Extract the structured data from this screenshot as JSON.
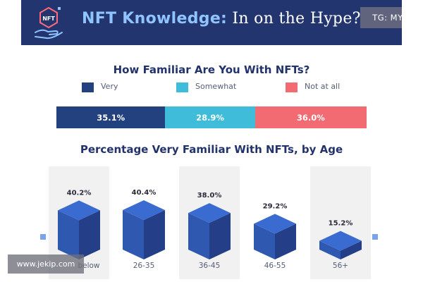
{
  "header": {
    "title_accent": "NFT Knowledge:",
    "title_rest": " In on the Hype?",
    "logo_text": "NFT",
    "background": "#23356f"
  },
  "watermarks": {
    "tg": "TG: MYYJJPP",
    "site": "www.jekip.com"
  },
  "colors": {
    "very": "#23417f",
    "somewhat": "#3fbcd9",
    "not_at_all": "#f26b73",
    "cube_front": "#2f58b0",
    "cube_top": "#3a6bd1",
    "cube_side": "#243f88"
  },
  "chart_data": [
    {
      "type": "bar",
      "title": "How Familiar Are You With NFTs?",
      "stacked": true,
      "orientation": "horizontal",
      "series": [
        {
          "name": "Very",
          "value": 35.1,
          "label": "35.1%"
        },
        {
          "name": "Somewhat",
          "value": 28.9,
          "label": "28.9%"
        },
        {
          "name": "Not at all",
          "value": 36.0,
          "label": "36.0%"
        }
      ],
      "legend": "top"
    },
    {
      "type": "bar",
      "title": "Percentage Very Familiar With NFTs, by Age",
      "categories": [
        "18-25 & below",
        "26-35",
        "36-45",
        "46-55",
        "56+"
      ],
      "category_labels_visible": [
        "below",
        "26-35",
        "36-45",
        "46-55",
        "56+"
      ],
      "values": [
        40.2,
        40.4,
        38.0,
        29.2,
        15.2
      ],
      "labels": [
        "40.2%",
        "40.4%",
        "38.0%",
        "29.2%",
        "15.2%"
      ],
      "ylim": [
        0,
        45
      ]
    }
  ]
}
